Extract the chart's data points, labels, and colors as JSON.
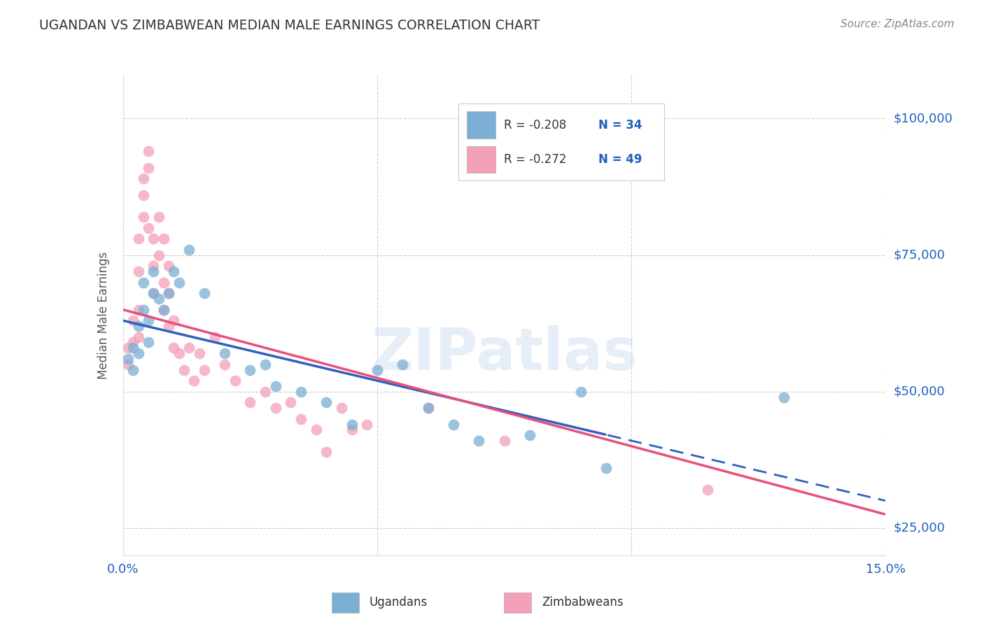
{
  "title": "UGANDAN VS ZIMBABWEAN MEDIAN MALE EARNINGS CORRELATION CHART",
  "source": "Source: ZipAtlas.com",
  "ylabel": "Median Male Earnings",
  "xlim": [
    0.0,
    0.15
  ],
  "ylim": [
    20000,
    108000
  ],
  "yticks": [
    25000,
    50000,
    75000,
    100000
  ],
  "ytick_labels": [
    "$25,000",
    "$50,000",
    "$75,000",
    "$100,000"
  ],
  "xticks": [
    0.0,
    0.05,
    0.1,
    0.15
  ],
  "xtick_labels": [
    "0.0%",
    "",
    "",
    "15.0%"
  ],
  "ugandan_color": "#7bafd4",
  "zimbabwean_color": "#f4a0b8",
  "blue_line_color": "#3060c0",
  "pink_line_color": "#e8507a",
  "ugandan_r": -0.208,
  "ugandan_n": 34,
  "zimbabwean_r": -0.272,
  "zimbabwean_n": 49,
  "ugandan_x": [
    0.001,
    0.002,
    0.002,
    0.003,
    0.003,
    0.004,
    0.004,
    0.005,
    0.005,
    0.006,
    0.006,
    0.007,
    0.008,
    0.009,
    0.01,
    0.011,
    0.013,
    0.016,
    0.02,
    0.025,
    0.028,
    0.03,
    0.035,
    0.04,
    0.045,
    0.05,
    0.055,
    0.06,
    0.065,
    0.07,
    0.08,
    0.09,
    0.095,
    0.13
  ],
  "ugandan_y": [
    56000,
    58000,
    54000,
    62000,
    57000,
    65000,
    70000,
    63000,
    59000,
    68000,
    72000,
    67000,
    65000,
    68000,
    72000,
    70000,
    76000,
    68000,
    57000,
    54000,
    55000,
    51000,
    50000,
    48000,
    44000,
    54000,
    55000,
    47000,
    44000,
    41000,
    42000,
    50000,
    36000,
    49000
  ],
  "zimbabwean_x": [
    0.001,
    0.001,
    0.002,
    0.002,
    0.003,
    0.003,
    0.003,
    0.003,
    0.004,
    0.004,
    0.004,
    0.005,
    0.005,
    0.005,
    0.006,
    0.006,
    0.006,
    0.007,
    0.007,
    0.008,
    0.008,
    0.008,
    0.009,
    0.009,
    0.009,
    0.01,
    0.01,
    0.011,
    0.012,
    0.013,
    0.014,
    0.015,
    0.016,
    0.018,
    0.02,
    0.022,
    0.025,
    0.028,
    0.03,
    0.033,
    0.035,
    0.038,
    0.04,
    0.043,
    0.045,
    0.048,
    0.06,
    0.075,
    0.115
  ],
  "zimbabwean_y": [
    58000,
    55000,
    63000,
    59000,
    72000,
    78000,
    65000,
    60000,
    82000,
    86000,
    89000,
    91000,
    94000,
    80000,
    78000,
    73000,
    68000,
    82000,
    75000,
    78000,
    70000,
    65000,
    73000,
    68000,
    62000,
    63000,
    58000,
    57000,
    54000,
    58000,
    52000,
    57000,
    54000,
    60000,
    55000,
    52000,
    48000,
    50000,
    47000,
    48000,
    45000,
    43000,
    39000,
    47000,
    43000,
    44000,
    47000,
    41000,
    32000
  ],
  "watermark": "ZIPatlas",
  "background_color": "#ffffff",
  "grid_color": "#cccccc"
}
